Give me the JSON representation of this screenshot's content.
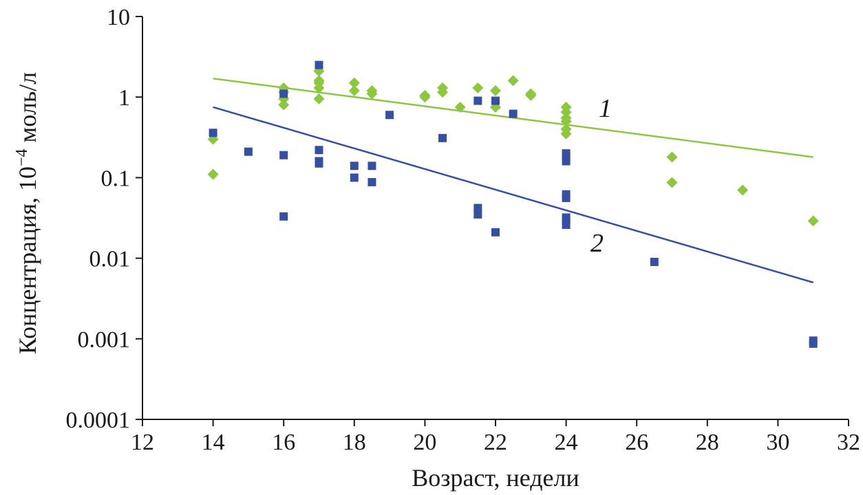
{
  "chart_data": {
    "type": "scatter",
    "title": "",
    "xlabel": "Возраст, недели",
    "ylabel": "Концентрация, 10",
    "ylabel_exponent": "−4",
    "ylabel_unit": " моль/л",
    "xlim": [
      12,
      32
    ],
    "ylim": [
      0.0001,
      10
    ],
    "yscale": "log",
    "grid": false,
    "x_ticks": [
      "12",
      "14",
      "16",
      "18",
      "20",
      "22",
      "24",
      "26",
      "28",
      "30",
      "32"
    ],
    "y_ticks": [
      "10",
      "1",
      "0.1",
      "0.01",
      "0.001",
      "0.0001"
    ],
    "series": [
      {
        "name": "1",
        "marker": "diamond",
        "color": "#8dc63f",
        "points": [
          [
            14,
            0.3
          ],
          [
            14,
            0.11
          ],
          [
            16,
            1.3
          ],
          [
            16,
            1.15
          ],
          [
            16,
            0.95
          ],
          [
            16,
            0.8
          ],
          [
            17,
            2.1
          ],
          [
            17,
            1.6
          ],
          [
            17,
            1.5
          ],
          [
            17,
            1.3
          ],
          [
            17,
            0.95
          ],
          [
            18,
            1.5
          ],
          [
            18,
            1.2
          ],
          [
            18.5,
            1.2
          ],
          [
            18.5,
            1.1
          ],
          [
            20,
            1.05
          ],
          [
            20,
            1.0
          ],
          [
            20.5,
            1.3
          ],
          [
            20.5,
            1.15
          ],
          [
            21,
            0.75
          ],
          [
            21.5,
            1.3
          ],
          [
            22,
            1.2
          ],
          [
            22,
            0.75
          ],
          [
            22.5,
            1.6
          ],
          [
            23,
            1.1
          ],
          [
            23,
            1.05
          ],
          [
            24,
            0.75
          ],
          [
            24,
            0.65
          ],
          [
            24,
            0.55
          ],
          [
            24,
            0.5
          ],
          [
            24,
            0.4
          ],
          [
            24,
            0.35
          ],
          [
            27,
            0.18
          ],
          [
            27,
            0.087
          ],
          [
            29,
            0.07
          ],
          [
            31,
            0.029
          ]
        ],
        "trend": {
          "x": [
            14,
            31
          ],
          "y": [
            1.7,
            0.18
          ]
        }
      },
      {
        "name": "2",
        "marker": "square",
        "color": "#3550a0",
        "points": [
          [
            14,
            0.36
          ],
          [
            15,
            0.21
          ],
          [
            16,
            1.1
          ],
          [
            16,
            0.19
          ],
          [
            16,
            0.033
          ],
          [
            17,
            2.5
          ],
          [
            17,
            0.22
          ],
          [
            17,
            0.16
          ],
          [
            17,
            0.15
          ],
          [
            18,
            0.14
          ],
          [
            18,
            0.1
          ],
          [
            18.5,
            0.14
          ],
          [
            18.5,
            0.088
          ],
          [
            19,
            0.6
          ],
          [
            20.5,
            0.31
          ],
          [
            21.5,
            0.9
          ],
          [
            21.5,
            0.042
          ],
          [
            21.5,
            0.035
          ],
          [
            22,
            0.9
          ],
          [
            22,
            0.021
          ],
          [
            22.5,
            0.62
          ],
          [
            24,
            0.2
          ],
          [
            24,
            0.18
          ],
          [
            24,
            0.16
          ],
          [
            24,
            0.062
          ],
          [
            24,
            0.056
          ],
          [
            24,
            0.032
          ],
          [
            24,
            0.029
          ],
          [
            24,
            0.026
          ],
          [
            26.5,
            0.009
          ],
          [
            31,
            0.00095
          ],
          [
            31,
            0.00087
          ]
        ],
        "trend": {
          "x": [
            14,
            31
          ],
          "y": [
            0.75,
            0.005
          ]
        }
      }
    ]
  }
}
